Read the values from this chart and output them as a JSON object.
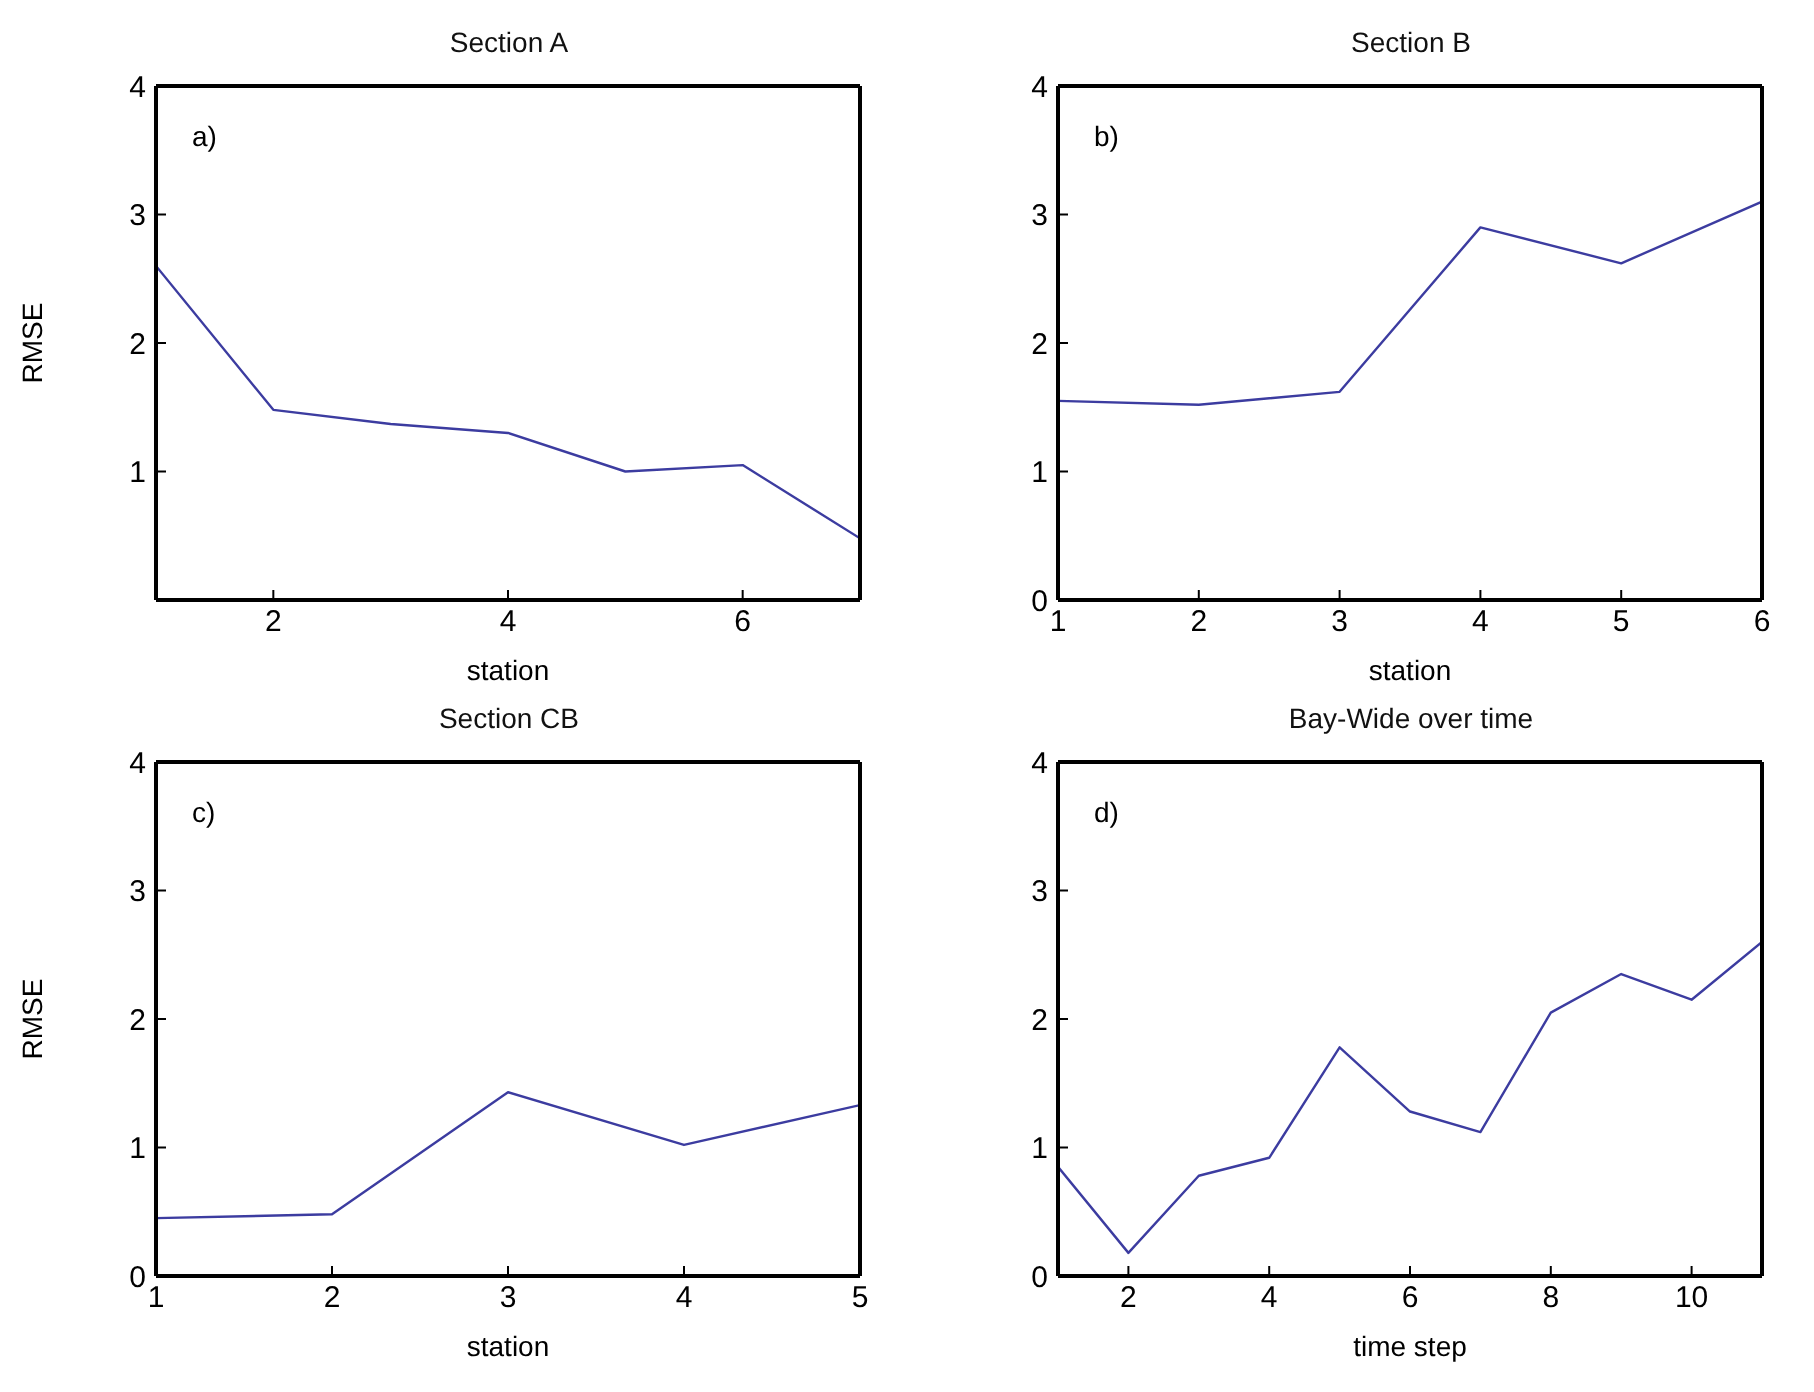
{
  "chart_data": [
    {
      "type": "line",
      "title": "Section A",
      "xlabel": "station",
      "ylabel": "RMSE",
      "annotations": [
        "a)"
      ],
      "x": [
        1,
        2,
        3,
        4,
        5,
        6,
        7
      ],
      "series": [
        {
          "color": "#3c3ca0",
          "values": [
            2.6,
            1.48,
            1.37,
            1.3,
            1.0,
            1.05,
            0.48
          ]
        }
      ],
      "xlim": [
        1,
        7
      ],
      "xticks": [
        2,
        4,
        6
      ],
      "ylim": [
        0,
        4
      ],
      "yticks": [
        1,
        2,
        3,
        4
      ],
      "grid": false,
      "legend": false
    },
    {
      "type": "line",
      "title": "Section B",
      "xlabel": "station",
      "annotations": [
        "b)"
      ],
      "x": [
        1,
        2,
        3,
        4,
        5,
        6
      ],
      "series": [
        {
          "color": "#3c3ca0",
          "values": [
            1.55,
            1.52,
            1.62,
            2.9,
            2.62,
            3.1
          ]
        }
      ],
      "xlim": [
        1,
        6
      ],
      "xticks": [
        1,
        2,
        3,
        4,
        5,
        6
      ],
      "ylim": [
        0,
        4
      ],
      "yticks": [
        0,
        1,
        2,
        3,
        4
      ],
      "grid": false,
      "legend": false
    },
    {
      "type": "line",
      "title": "Section CB",
      "xlabel": "station",
      "ylabel": "RMSE",
      "annotations": [
        "c)"
      ],
      "x": [
        1,
        2,
        3,
        4,
        5
      ],
      "series": [
        {
          "color": "#3c3ca0",
          "values": [
            0.45,
            0.48,
            1.43,
            1.02,
            1.33
          ]
        }
      ],
      "xlim": [
        1,
        5
      ],
      "xticks": [
        1,
        2,
        3,
        4,
        5
      ],
      "ylim": [
        0,
        4
      ],
      "yticks": [
        0,
        1,
        2,
        3,
        4
      ],
      "grid": false,
      "legend": false
    },
    {
      "type": "line",
      "title": "Bay-Wide over time",
      "xlabel": "time step",
      "annotations": [
        "d)"
      ],
      "x": [
        1,
        2,
        3,
        4,
        5,
        6,
        7,
        8,
        9,
        10,
        11
      ],
      "series": [
        {
          "color": "#3c3ca0",
          "values": [
            0.85,
            0.18,
            0.78,
            0.92,
            1.78,
            1.28,
            1.12,
            2.05,
            2.35,
            2.15,
            2.6
          ]
        }
      ],
      "xlim": [
        1,
        11
      ],
      "xticks": [
        2,
        4,
        6,
        8,
        10
      ],
      "ylim": [
        0,
        4
      ],
      "yticks": [
        0,
        1,
        2,
        3,
        4
      ],
      "grid": false,
      "legend": false
    }
  ]
}
